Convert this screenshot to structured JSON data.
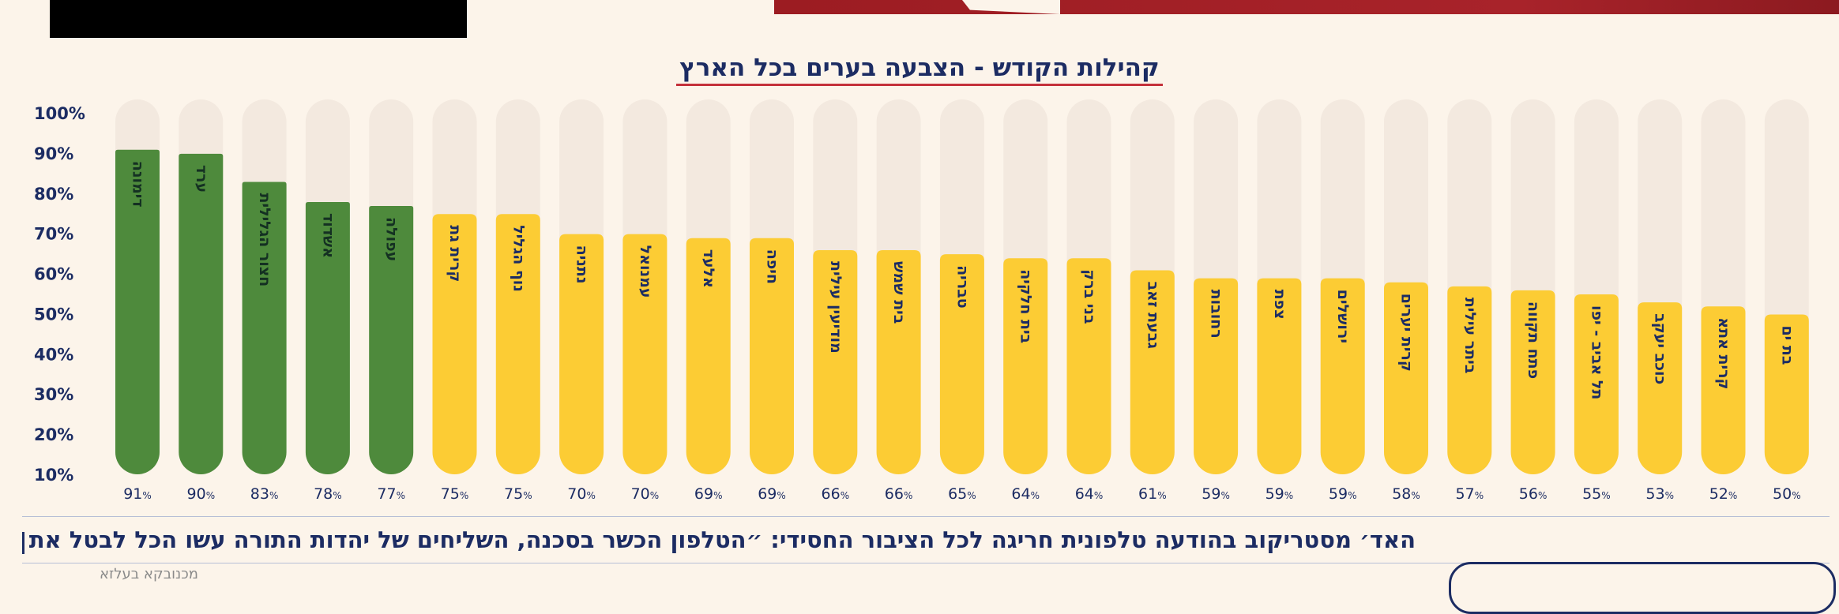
{
  "title": "קהילות הקודש - הצבעה בערים בכל הארץ",
  "headline": "האד׳ מסטריקוב בהודעה טלפונית חריגה לכל הציבור החסידי: ״הטלפון הכשר בסכנה, השליחים של יהדות התורה עשו הכל לבטל את",
  "credit": "מכנובקא בעלזא",
  "colors": {
    "background": "#fcf4ea",
    "track": "#f3e9df",
    "green": "#4e8a3c",
    "yellow": "#fccc34",
    "navy": "#1c2c63",
    "accent_red": "#a8232a"
  },
  "chart_data": {
    "type": "bar",
    "orientation": "vertical",
    "ylim": [
      10,
      100
    ],
    "y_ticks": [
      "10%",
      "20%",
      "30%",
      "40%",
      "50%",
      "60%",
      "70%",
      "80%",
      "90%",
      "100%"
    ],
    "percent_sign": "%",
    "categories": [
      "דימונה",
      "ערד",
      "חצור הגלילית",
      "אשדוד",
      "עפולה",
      "קרית גת",
      "נוף הגליל",
      "נתניה",
      "עמנואל",
      "אלעד",
      "חיפה",
      "מודיעין עילית",
      "בית שמש",
      "טבריה",
      "בית חלקיה",
      "בני ברק",
      "גבעת זאב",
      "רחובות",
      "צפת",
      "ירושלים",
      "קרית יערים",
      "ביתר עילית",
      "פתח תקווה",
      "תל אביב - יפו",
      "כוכב יעקב",
      "קרית אתא",
      "בת ים"
    ],
    "values": [
      91,
      90,
      83,
      78,
      77,
      75,
      75,
      70,
      70,
      69,
      69,
      66,
      66,
      65,
      64,
      64,
      61,
      59,
      59,
      59,
      58,
      57,
      56,
      55,
      53,
      52,
      50
    ],
    "bar_colors": [
      "green",
      "green",
      "green",
      "green",
      "green",
      "yellow",
      "yellow",
      "yellow",
      "yellow",
      "yellow",
      "yellow",
      "yellow",
      "yellow",
      "yellow",
      "yellow",
      "yellow",
      "yellow",
      "yellow",
      "yellow",
      "yellow",
      "yellow",
      "yellow",
      "yellow",
      "yellow",
      "yellow",
      "yellow",
      "yellow"
    ],
    "legend": "none",
    "grid": false
  }
}
